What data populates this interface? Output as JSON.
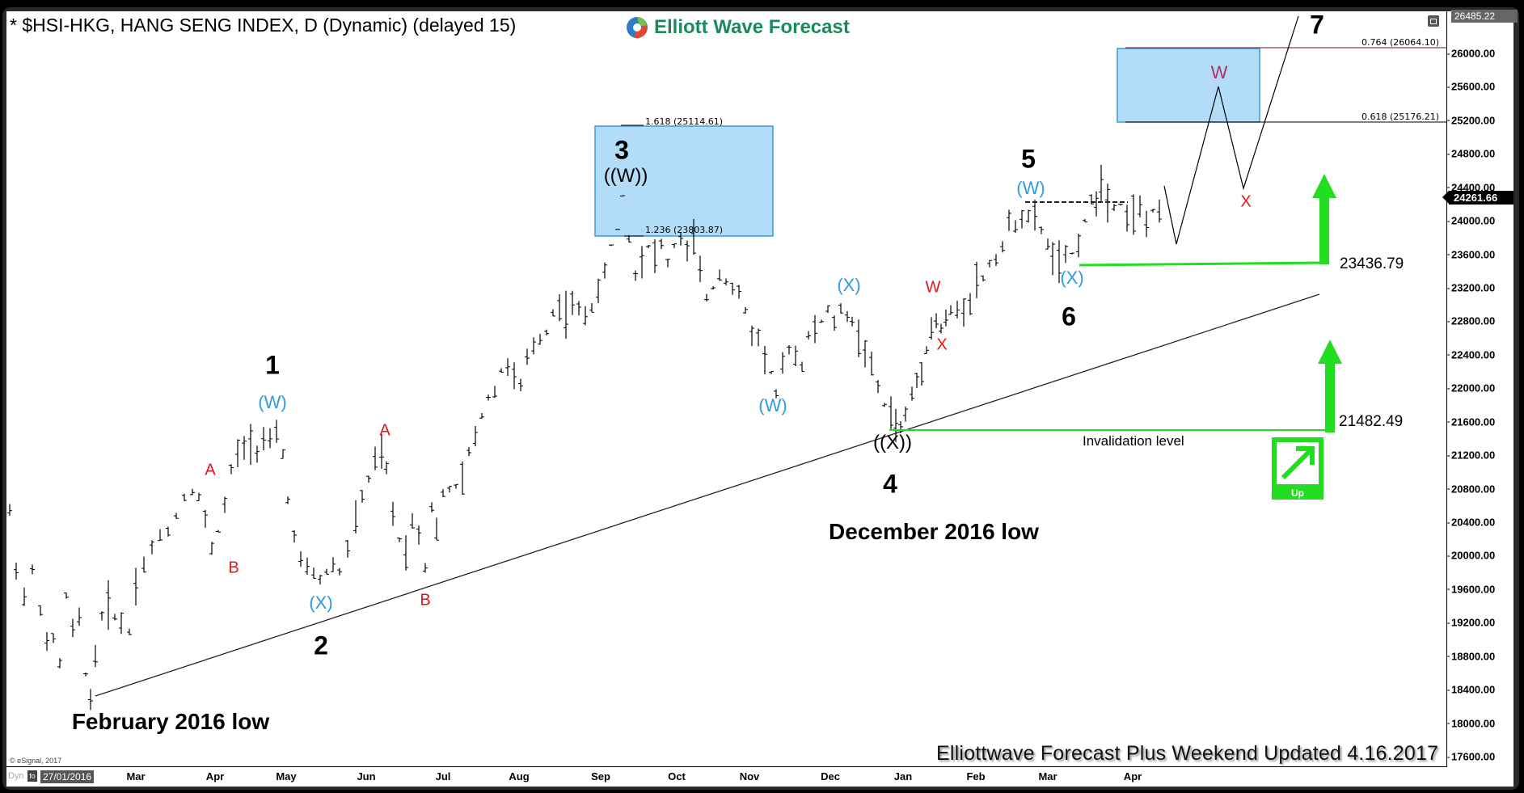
{
  "header": {
    "title": "* $HSI-HKG, HANG SENG INDEX, D (Dynamic) (delayed 15)",
    "logo_text": "Elliott Wave Forecast"
  },
  "footer": {
    "updated_text": "Elliottwave Forecast Plus Weekend Updated 4.16.2017",
    "copyright": "© eSignal, 2017",
    "dyn_label": "Dyn",
    "fo_label": "fo",
    "start_date": "27/01/2016"
  },
  "price_axis": {
    "top_marker": "26485.22",
    "current_price": "24261.66",
    "ticks": [
      "26000.00",
      "25600.00",
      "25200.00",
      "24800.00",
      "24400.00",
      "24000.00",
      "23600.00",
      "23200.00",
      "22800.00",
      "22400.00",
      "22000.00",
      "21600.00",
      "21200.00",
      "20800.00",
      "20400.00",
      "20000.00",
      "19600.00",
      "19200.00",
      "18800.00",
      "18400.00",
      "18000.00",
      "17600.00"
    ]
  },
  "time_axis": {
    "ticks": [
      "Mar",
      "Apr",
      "May",
      "Jun",
      "Jul",
      "Aug",
      "Sep",
      "Oct",
      "Nov",
      "Dec",
      "Jan",
      "Feb",
      "Mar",
      "Apr"
    ]
  },
  "annotations": {
    "wave_1": "1",
    "wave_2": "2",
    "wave_3": "3",
    "wave_4": "4",
    "wave_5": "5",
    "wave_6": "6",
    "wave_7": "7",
    "w1_W": "(W)",
    "w2_X": "(X)",
    "a1": "A",
    "b1": "B",
    "a2": "A",
    "b2": "B",
    "w3_WW": "((W))",
    "w4_W": "(W)",
    "w4_X": "(X)",
    "w4_XX": "((X))",
    "w5_red_W": "W",
    "w5_red_X": "X",
    "w5_W": "(W)",
    "w6_X": "(X)",
    "proj_W": "W",
    "proj_X": "X",
    "feb_low": "February 2016 low",
    "dec_low": "December 2016 low",
    "fib_1618": "1.618 (25114.61)",
    "fib_1236": "1.236 (23803.87)",
    "fib_0764": "0.764 (26064.10)",
    "fib_0618": "0.618 (25176.21)",
    "level_high": "23436.79",
    "level_low": "21482.49",
    "invalidation": "Invalidation level",
    "up_badge": "Up"
  },
  "colors": {
    "target_box": "#b3dcf8",
    "target_box_border": "#3a9ad9",
    "green": "#22dd22",
    "wave_blue": "#2d9be0",
    "wave_red": "#e3171b",
    "proj_W": "#b0306a",
    "logo_green": "#1b8a5a"
  },
  "chart_data": {
    "type": "bar",
    "title": "$HSI-HKG, HANG SENG INDEX, D (Dynamic) (delayed 15)",
    "xlabel": "",
    "ylabel": "",
    "ylim": [
      17600,
      26485.22
    ],
    "x_ticks": [
      "Mar 2016",
      "Apr",
      "May",
      "Jun",
      "Jul",
      "Aug",
      "Sep",
      "Oct",
      "Nov",
      "Dec",
      "Jan 2017",
      "Feb",
      "Mar",
      "Apr"
    ],
    "grid": false,
    "current_price": 24261.66,
    "pivots": [
      {
        "date": "2016-01-27",
        "price": 19900,
        "label": ""
      },
      {
        "date": "2016-02-12",
        "price": 18300,
        "label": "February 2016 low"
      },
      {
        "date": "2016-03-01",
        "price": 19500,
        "label": ""
      },
      {
        "date": "2016-03-31",
        "price": 20800,
        "label": "A"
      },
      {
        "date": "2016-04-06",
        "price": 20100,
        "label": "B"
      },
      {
        "date": "2016-04-27",
        "price": 21600,
        "label": "1 (W)"
      },
      {
        "date": "2016-05-19",
        "price": 19600,
        "label": "2 (X)"
      },
      {
        "date": "2016-06-09",
        "price": 21300,
        "label": "A"
      },
      {
        "date": "2016-06-24",
        "price": 19700,
        "label": "B"
      },
      {
        "date": "2016-08-15",
        "price": 23000,
        "label": ""
      },
      {
        "date": "2016-09-09",
        "price": 24364,
        "label": "3 ((W))"
      },
      {
        "date": "2016-10-05",
        "price": 23900,
        "label": ""
      },
      {
        "date": "2016-11-09",
        "price": 21960,
        "label": "(W)"
      },
      {
        "date": "2016-11-28",
        "price": 23000,
        "label": "(X)"
      },
      {
        "date": "2016-12-23",
        "price": 21482.49,
        "label": "4 ((X))"
      },
      {
        "date": "2017-01-16",
        "price": 22900,
        "label": "W"
      },
      {
        "date": "2017-01-17",
        "price": 22700,
        "label": "X"
      },
      {
        "date": "2017-02-21",
        "price": 24100,
        "label": "5 (W)"
      },
      {
        "date": "2017-03-09",
        "price": 23436.79,
        "label": "6 (X)"
      },
      {
        "date": "2017-03-21",
        "price": 24600,
        "label": ""
      },
      {
        "date": "2017-04-13",
        "price": 24261.66,
        "label": ""
      }
    ],
    "projection": [
      {
        "step": "dip",
        "price": 23700
      },
      {
        "step": "W",
        "price": 25550
      },
      {
        "step": "X",
        "price": 24350
      },
      {
        "step": "7",
        "price": 26450
      }
    ],
    "fib_levels": [
      {
        "ratio": 1.618,
        "price": 25114.61
      },
      {
        "ratio": 1.236,
        "price": 23803.87
      },
      {
        "ratio": 0.764,
        "price": 26064.1
      },
      {
        "ratio": 0.618,
        "price": 25176.21
      }
    ],
    "key_levels": [
      {
        "price": 23436.79,
        "label": ""
      },
      {
        "price": 21482.49,
        "label": "Invalidation level"
      }
    ],
    "trendline": {
      "from": {
        "date": "2016-02-12",
        "price": 18300
      },
      "to": {
        "date": "2017-04-30",
        "price": 23100
      }
    },
    "bar_anchor_points": [
      [
        12,
        20500
      ],
      [
        20,
        19900
      ],
      [
        30,
        19500
      ],
      [
        40,
        19800
      ],
      [
        50,
        19400
      ],
      [
        58,
        18900
      ],
      [
        66,
        19000
      ],
      [
        74,
        18700
      ],
      [
        82,
        19500
      ],
      [
        90,
        19100
      ],
      [
        98,
        19200
      ],
      [
        106,
        18600
      ],
      [
        112,
        18300
      ],
      [
        118,
        18800
      ],
      [
        126,
        19300
      ],
      [
        134,
        19400
      ],
      [
        142,
        19300
      ],
      [
        150,
        19200
      ],
      [
        160,
        19100
      ],
      [
        168,
        19700
      ],
      [
        178,
        19900
      ],
      [
        188,
        20100
      ],
      [
        198,
        20200
      ],
      [
        208,
        20300
      ],
      [
        218,
        20500
      ],
      [
        228,
        20700
      ],
      [
        238,
        20800
      ],
      [
        246,
        20700
      ],
      [
        254,
        20400
      ],
      [
        262,
        20100
      ],
      [
        270,
        20300
      ],
      [
        278,
        20600
      ],
      [
        286,
        21000
      ],
      [
        294,
        21200
      ],
      [
        302,
        21300
      ],
      [
        310,
        21400
      ],
      [
        318,
        21300
      ],
      [
        326,
        21400
      ],
      [
        334,
        21300
      ],
      [
        342,
        21400
      ],
      [
        350,
        21200
      ],
      [
        356,
        20700
      ],
      [
        364,
        20200
      ],
      [
        372,
        19900
      ],
      [
        380,
        19800
      ],
      [
        388,
        19800
      ],
      [
        396,
        19700
      ],
      [
        404,
        19800
      ],
      [
        412,
        19900
      ],
      [
        420,
        19800
      ],
      [
        430,
        20100
      ],
      [
        440,
        20400
      ],
      [
        448,
        20700
      ],
      [
        456,
        20900
      ],
      [
        464,
        21100
      ],
      [
        472,
        21200
      ],
      [
        478,
        21000
      ],
      [
        486,
        20500
      ],
      [
        494,
        20200
      ],
      [
        502,
        20100
      ],
      [
        510,
        20400
      ],
      [
        518,
        20300
      ],
      [
        526,
        19900
      ],
      [
        534,
        20600
      ],
      [
        540,
        20300
      ],
      [
        548,
        20700
      ],
      [
        556,
        20800
      ],
      [
        564,
        20800
      ],
      [
        572,
        20900
      ],
      [
        580,
        21200
      ],
      [
        588,
        21400
      ],
      [
        596,
        21700
      ],
      [
        604,
        21900
      ],
      [
        612,
        22000
      ],
      [
        620,
        22200
      ],
      [
        628,
        22300
      ],
      [
        636,
        22100
      ],
      [
        644,
        22000
      ],
      [
        652,
        22300
      ],
      [
        660,
        22500
      ],
      [
        668,
        22600
      ],
      [
        676,
        22700
      ],
      [
        684,
        22900
      ],
      [
        692,
        23000
      ],
      [
        700,
        22900
      ],
      [
        708,
        23000
      ],
      [
        716,
        22900
      ],
      [
        724,
        22900
      ],
      [
        732,
        23000
      ],
      [
        740,
        23100
      ],
      [
        748,
        23400
      ],
      [
        756,
        23700
      ],
      [
        764,
        23900
      ],
      [
        770,
        24300
      ],
      [
        778,
        23800
      ],
      [
        786,
        23400
      ],
      [
        794,
        23600
      ],
      [
        802,
        23700
      ],
      [
        810,
        23600
      ],
      [
        818,
        23700
      ],
      [
        826,
        23500
      ],
      [
        834,
        23700
      ],
      [
        842,
        23800
      ],
      [
        850,
        23600
      ],
      [
        858,
        23800
      ],
      [
        866,
        23300
      ],
      [
        874,
        23100
      ],
      [
        882,
        23200
      ],
      [
        890,
        23400
      ],
      [
        898,
        23300
      ],
      [
        906,
        23200
      ],
      [
        914,
        23100
      ],
      [
        922,
        22900
      ],
      [
        930,
        22700
      ],
      [
        938,
        22600
      ],
      [
        946,
        22400
      ],
      [
        954,
        22200
      ],
      [
        960,
        21900
      ],
      [
        968,
        22200
      ],
      [
        976,
        22500
      ],
      [
        984,
        22400
      ],
      [
        992,
        22300
      ],
      [
        1000,
        22600
      ],
      [
        1008,
        22700
      ],
      [
        1016,
        22800
      ],
      [
        1024,
        22900
      ],
      [
        1032,
        22800
      ],
      [
        1040,
        22900
      ],
      [
        1048,
        22900
      ],
      [
        1054,
        22800
      ],
      [
        1062,
        22600
      ],
      [
        1070,
        22500
      ],
      [
        1078,
        22200
      ],
      [
        1086,
        22000
      ],
      [
        1094,
        21800
      ],
      [
        1102,
        21700
      ],
      [
        1108,
        21600
      ],
      [
        1114,
        21500
      ],
      [
        1120,
        21700
      ],
      [
        1128,
        21900
      ],
      [
        1134,
        22100
      ],
      [
        1140,
        22300
      ],
      [
        1146,
        22500
      ],
      [
        1152,
        22700
      ],
      [
        1158,
        22800
      ],
      [
        1164,
        22700
      ],
      [
        1170,
        22800
      ],
      [
        1176,
        22900
      ],
      [
        1184,
        22900
      ],
      [
        1192,
        23000
      ],
      [
        1200,
        23100
      ],
      [
        1208,
        23300
      ],
      [
        1216,
        23300
      ],
      [
        1224,
        23500
      ],
      [
        1232,
        23600
      ],
      [
        1240,
        23700
      ],
      [
        1248,
        23900
      ],
      [
        1256,
        24000
      ],
      [
        1264,
        24100
      ],
      [
        1272,
        24000
      ],
      [
        1280,
        24000
      ],
      [
        1288,
        23900
      ],
      [
        1296,
        23700
      ],
      [
        1302,
        23600
      ],
      [
        1310,
        23500
      ],
      [
        1318,
        23500
      ],
      [
        1326,
        23600
      ],
      [
        1334,
        23800
      ],
      [
        1342,
        24000
      ],
      [
        1350,
        24200
      ],
      [
        1356,
        24300
      ],
      [
        1362,
        24500
      ],
      [
        1370,
        24300
      ],
      [
        1378,
        24200
      ],
      [
        1386,
        24200
      ],
      [
        1394,
        24100
      ],
      [
        1402,
        24100
      ],
      [
        1410,
        24100
      ],
      [
        1418,
        24000
      ],
      [
        1426,
        24100
      ],
      [
        1434,
        24000
      ]
    ]
  }
}
